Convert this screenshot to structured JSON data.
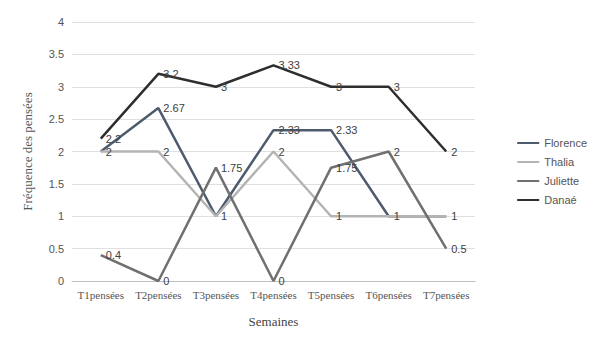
{
  "chart_data": {
    "type": "line",
    "x_label": "Semaines",
    "y_label": "Fréquence des pensées",
    "categories": [
      "T1pensées",
      "T2pensées",
      "T3pensées",
      "T4pensées",
      "T5pensées",
      "T6pensées",
      "T7pensées"
    ],
    "series": [
      {
        "name": "Florence",
        "color": "#4d5b6d",
        "values": [
          2,
          2.67,
          1,
          2.33,
          2.33,
          1,
          1
        ]
      },
      {
        "name": "Thalia",
        "color": "#b4b4b4",
        "values": [
          2,
          2,
          1,
          2,
          1,
          1,
          1
        ]
      },
      {
        "name": "Juliette",
        "color": "#707070",
        "values": [
          0.4,
          0,
          1.75,
          0,
          1.75,
          2,
          0.5
        ]
      },
      {
        "name": "Danaé",
        "color": "#2e2e2e",
        "values": [
          2.2,
          3.2,
          3,
          3.33,
          3,
          3,
          2
        ]
      }
    ],
    "ylim": [
      0,
      4
    ],
    "yticks": [
      0,
      0.5,
      1,
      1.5,
      2,
      2.5,
      3,
      3.5,
      4
    ],
    "grid": true,
    "legend": "right",
    "data_labels": true
  }
}
